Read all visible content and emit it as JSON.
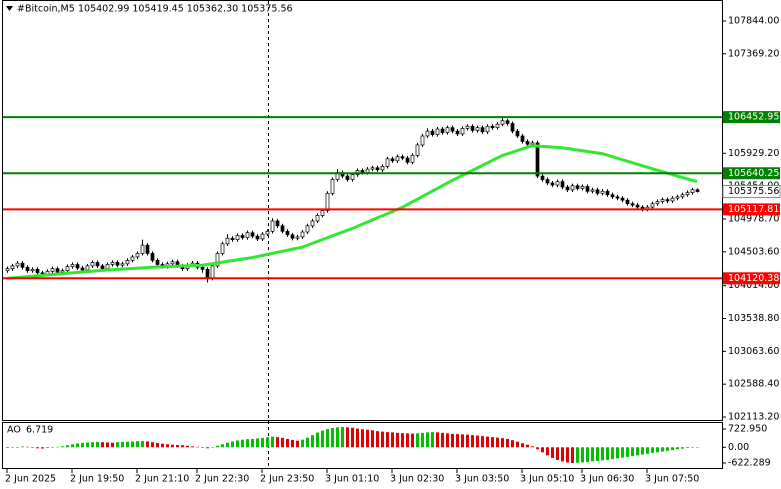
{
  "chart_data": {
    "type": "candlestick",
    "title": "#Bitcoin,M5",
    "ohlc_label": "105402.99 105419.45 105362.30 105375.56",
    "categories": [
      "2 Jun 2025",
      null,
      null,
      null,
      null,
      null,
      null,
      null,
      null,
      null,
      null,
      null,
      null,
      "2 Jun 19:50",
      null,
      null,
      null,
      null,
      null,
      null,
      null,
      null,
      null,
      null,
      null,
      null,
      "2 Jun 21:10",
      null,
      null,
      null,
      null,
      null,
      null,
      null,
      null,
      null,
      null,
      null,
      "2 Jun 22:30",
      null,
      null,
      null,
      null,
      null,
      null,
      null,
      null,
      null,
      null,
      null,
      null,
      "2 Jun 23:50",
      null,
      null,
      null,
      null,
      null,
      null,
      null,
      null,
      null,
      null,
      null,
      null,
      "3 Jun 01:10",
      null,
      null,
      null,
      null,
      null,
      null,
      null,
      null,
      null,
      null,
      null,
      null,
      "3 Jun 02:30",
      null,
      null,
      null,
      null,
      null,
      null,
      null,
      null,
      null,
      null,
      null,
      null,
      "3 Jun 03:50",
      null,
      null,
      null,
      null,
      null,
      null,
      null,
      null,
      null,
      null,
      null,
      null,
      "3 Jun 05:10",
      null,
      null,
      null,
      null,
      null,
      null,
      null,
      null,
      null,
      null,
      null,
      "3 Jun 06:30",
      null,
      null,
      null,
      null,
      null,
      null,
      null,
      null,
      null,
      null,
      null,
      null,
      "3 Jun 07:50",
      null,
      null,
      null,
      null,
      null,
      null,
      null,
      null,
      null,
      null
    ],
    "open": [
      104230,
      104260,
      104300,
      104340,
      104280,
      104230,
      104250,
      104200,
      104180,
      104220,
      104260,
      104210,
      104230,
      104290,
      104320,
      104270,
      104240,
      104300,
      104350,
      104300,
      104260,
      104320,
      104350,
      104310,
      104330,
      104380,
      104430,
      104480,
      104600,
      104480,
      104380,
      104320,
      104290,
      104330,
      104360,
      104300,
      104260,
      104310,
      104340,
      104280,
      104250,
      104120,
      104300,
      104480,
      104620,
      104700,
      104680,
      104740,
      104710,
      104780,
      104730,
      104690,
      104760,
      104800,
      104950,
      104880,
      104800,
      104750,
      104700,
      104720,
      104790,
      104880,
      104950,
      105030,
      105100,
      105350,
      105550,
      105650,
      105600,
      105550,
      105620,
      105680,
      105650,
      105700,
      105720,
      105690,
      105740,
      105850,
      105820,
      105880,
      105860,
      105800,
      105900,
      106050,
      106180,
      106250,
      106200,
      106280,
      106230,
      106300,
      106250,
      106210,
      106290,
      106320,
      106260,
      106300,
      106240,
      106320,
      106300,
      106350,
      106400,
      106360,
      106250,
      106180,
      106100,
      106060,
      106080,
      105600,
      105550,
      105500,
      105470,
      105520,
      105440,
      105400,
      105460,
      105420,
      105450,
      105380,
      105400,
      105350,
      105380,
      105330,
      105300,
      105280,
      105250,
      105200,
      105180,
      105150,
      105120,
      105150,
      105200,
      105230,
      105260,
      105240,
      105280,
      105300,
      105330,
      105360,
      105402.99
    ],
    "high": [
      104290,
      104330,
      104370,
      104370,
      104310,
      104280,
      104280,
      104230,
      104250,
      104290,
      104290,
      104260,
      104320,
      104350,
      104350,
      104300,
      104330,
      104380,
      104380,
      104330,
      104350,
      104380,
      104380,
      104360,
      104410,
      104460,
      104510,
      104680,
      104630,
      104510,
      104410,
      104350,
      104360,
      104390,
      104390,
      104330,
      104340,
      104370,
      104370,
      104310,
      104280,
      104330,
      104510,
      104650,
      104760,
      104730,
      104770,
      104770,
      104810,
      104810,
      104760,
      104790,
      104830,
      104990,
      104980,
      104910,
      104830,
      104780,
      104750,
      104820,
      104910,
      104980,
      105060,
      105130,
      105380,
      105580,
      105700,
      105680,
      105630,
      105650,
      105710,
      105710,
      105730,
      105750,
      105750,
      105770,
      105880,
      105880,
      105910,
      105910,
      105890,
      105930,
      106080,
      106210,
      106290,
      106280,
      106310,
      106310,
      106330,
      106330,
      106280,
      106320,
      106350,
      106350,
      106330,
      106330,
      106350,
      106350,
      106380,
      106460,
      106430,
      106390,
      106280,
      106210,
      106130,
      106110,
      106110,
      105630,
      105580,
      105530,
      105550,
      105550,
      105470,
      105490,
      105490,
      105480,
      105480,
      105430,
      105430,
      105410,
      105410,
      105360,
      105330,
      105310,
      105280,
      105230,
      105210,
      105180,
      105180,
      105230,
      105260,
      105290,
      105290,
      105310,
      105330,
      105360,
      105390,
      105430,
      105419.45
    ],
    "low": [
      104200,
      104230,
      104270,
      104250,
      104200,
      104200,
      104170,
      104150,
      104150,
      104190,
      104180,
      104180,
      104200,
      104260,
      104240,
      104210,
      104210,
      104270,
      104270,
      104230,
      104230,
      104290,
      104280,
      104280,
      104300,
      104350,
      104400,
      104450,
      104450,
      104350,
      104290,
      104260,
      104260,
      104300,
      104270,
      104230,
      104230,
      104280,
      104250,
      104200,
      104060,
      104090,
      104270,
      104450,
      104590,
      104650,
      104650,
      104680,
      104680,
      104700,
      104660,
      104660,
      104730,
      104770,
      104850,
      104770,
      104720,
      104670,
      104670,
      104690,
      104760,
      104850,
      104920,
      105000,
      105070,
      105320,
      105520,
      105570,
      105520,
      105520,
      105590,
      105620,
      105620,
      105670,
      105660,
      105660,
      105710,
      105790,
      105790,
      105830,
      105770,
      105770,
      105870,
      106020,
      106150,
      106170,
      106170,
      106200,
      106200,
      106220,
      106180,
      106180,
      106260,
      106230,
      106230,
      106210,
      106210,
      106270,
      106270,
      106320,
      106330,
      106220,
      106150,
      106070,
      106030,
      106030,
      105570,
      105520,
      105470,
      105440,
      105440,
      105410,
      105370,
      105370,
      105390,
      105390,
      105350,
      105350,
      105320,
      105320,
      105300,
      105270,
      105250,
      105220,
      105170,
      105150,
      105120,
      105090,
      105090,
      105120,
      105170,
      105200,
      105210,
      105210,
      105250,
      105270,
      105300,
      105330,
      105362.3
    ],
    "close": [
      104260,
      104300,
      104340,
      104280,
      104230,
      104250,
      104200,
      104180,
      104220,
      104260,
      104210,
      104230,
      104290,
      104320,
      104270,
      104240,
      104300,
      104350,
      104300,
      104260,
      104320,
      104350,
      104310,
      104330,
      104380,
      104430,
      104480,
      104600,
      104480,
      104380,
      104320,
      104290,
      104330,
      104360,
      104300,
      104260,
      104310,
      104340,
      104280,
      104250,
      104120,
      104300,
      104480,
      104620,
      104700,
      104680,
      104740,
      104710,
      104780,
      104730,
      104690,
      104760,
      104800,
      104950,
      104880,
      104800,
      104750,
      104700,
      104720,
      104790,
      104880,
      104950,
      105030,
      105100,
      105350,
      105550,
      105650,
      105600,
      105550,
      105620,
      105680,
      105650,
      105700,
      105720,
      105690,
      105740,
      105850,
      105820,
      105880,
      105860,
      105800,
      105900,
      106050,
      106180,
      106250,
      106200,
      106280,
      106230,
      106300,
      106250,
      106210,
      106290,
      106320,
      106260,
      106300,
      106240,
      106320,
      106300,
      106350,
      106400,
      106360,
      106250,
      106180,
      106100,
      106060,
      106080,
      105600,
      105550,
      105500,
      105470,
      105520,
      105440,
      105400,
      105460,
      105420,
      105450,
      105380,
      105400,
      105350,
      105380,
      105330,
      105300,
      105280,
      105250,
      105200,
      105180,
      105150,
      105120,
      105150,
      105200,
      105230,
      105260,
      105240,
      105280,
      105300,
      105330,
      105360,
      105402.99,
      105375.56
    ],
    "up_color": "#ffffff",
    "down_color": "#000000",
    "candle_outline": "#000000",
    "ylim": [
      102070,
      108133
    ],
    "yticks": [
      {
        "value": 107844,
        "label": "107844.00"
      },
      {
        "value": 107369.2,
        "label": "107369.20"
      },
      {
        "value": 105929.2,
        "label": "105929.20"
      },
      {
        "value": 105454,
        "label": "105454.00"
      },
      {
        "value": 104978.7,
        "label": "104978.70"
      },
      {
        "value": 104503.6,
        "label": "104503.60"
      },
      {
        "value": 104014,
        "label": "104014.00"
      },
      {
        "value": 103538.8,
        "label": "103538.80"
      },
      {
        "value": 103063.6,
        "label": "103063.60"
      },
      {
        "value": 102588.4,
        "label": "102588.40"
      },
      {
        "value": 102113.2,
        "label": "102113.20"
      }
    ],
    "ma": {
      "x": [
        0,
        19,
        29,
        39,
        49,
        59,
        69,
        79,
        89,
        99,
        105,
        111,
        119,
        127,
        135,
        138
      ],
      "values": [
        104120,
        104235,
        104280,
        104310,
        104420,
        104570,
        104840,
        105145,
        105535,
        105895,
        106040,
        106010,
        105925,
        105750,
        105580,
        105520
      ],
      "color": "#32e632"
    },
    "levels": [
      {
        "value": 106452.95,
        "color": "#008000"
      },
      {
        "value": 105640.25,
        "color": "#008000"
      },
      {
        "value": 105117.81,
        "color": "#ff0000"
      },
      {
        "value": 104120.38,
        "color": "#ff0000"
      }
    ],
    "ao": {
      "name": "AO",
      "up_color": "#00c000",
      "down_color": "#e00000",
      "values": [
        -30,
        -20,
        10,
        30,
        20,
        -10,
        -40,
        -50,
        -30,
        0,
        20,
        40,
        80,
        120,
        150,
        170,
        190,
        200,
        210,
        200,
        190,
        180,
        200,
        210,
        220,
        230,
        240,
        250,
        230,
        200,
        170,
        140,
        120,
        100,
        90,
        80,
        60,
        40,
        20,
        -10,
        -40,
        0,
        60,
        120,
        180,
        230,
        270,
        300,
        320,
        330,
        350,
        370,
        390,
        420,
        400,
        370,
        330,
        290,
        260,
        300,
        380,
        480,
        580,
        660,
        720,
        760,
        790,
        800,
        790,
        770,
        740,
        710,
        690,
        670,
        640,
        620,
        600,
        590,
        570,
        560,
        550,
        540,
        550,
        570,
        590,
        600,
        590,
        570,
        550,
        530,
        520,
        510,
        500,
        480,
        460,
        440,
        420,
        400,
        380,
        360,
        330,
        280,
        220,
        160,
        100,
        40,
        -80,
        -200,
        -320,
        -420,
        -500,
        -560,
        -600,
        -620,
        -610,
        -600,
        -580,
        -560,
        -540,
        -520,
        -500,
        -470,
        -440,
        -410,
        -380,
        -350,
        -320,
        -290,
        -260,
        -230,
        -200,
        -170,
        -140,
        -110,
        -80,
        -55,
        -30,
        -10,
        6.719
      ],
      "ylim": [
        -820,
        960
      ],
      "yticks": [
        {
          "value": 722.95,
          "label": "722.950"
        },
        {
          "value": 0,
          "label": "0.00"
        },
        {
          "value": -622.289,
          "label": "-622.289"
        }
      ]
    }
  }
}
